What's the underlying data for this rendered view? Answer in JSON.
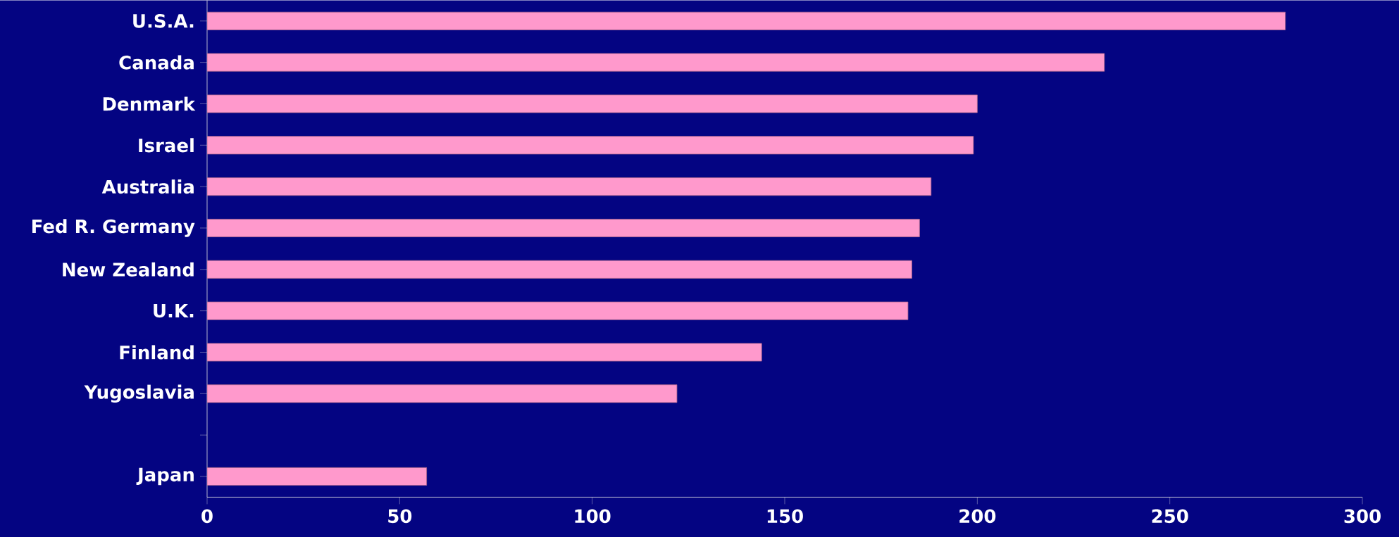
{
  "chart_data": {
    "type": "bar",
    "orientation": "horizontal",
    "categories": [
      "U.S.A.",
      "Canada",
      "Denmark",
      "Israel",
      "Australia",
      "Fed R. Germany",
      "New Zealand",
      "U.K.",
      "Finland",
      "Yugoslavia",
      null,
      "Japan"
    ],
    "values": [
      280,
      233,
      200,
      199,
      188,
      185,
      183,
      182,
      144,
      122,
      null,
      57
    ],
    "color": "#ff99cc",
    "xlim": [
      0,
      300
    ],
    "xticks": [
      0,
      50,
      100,
      150,
      200,
      250,
      300
    ]
  }
}
